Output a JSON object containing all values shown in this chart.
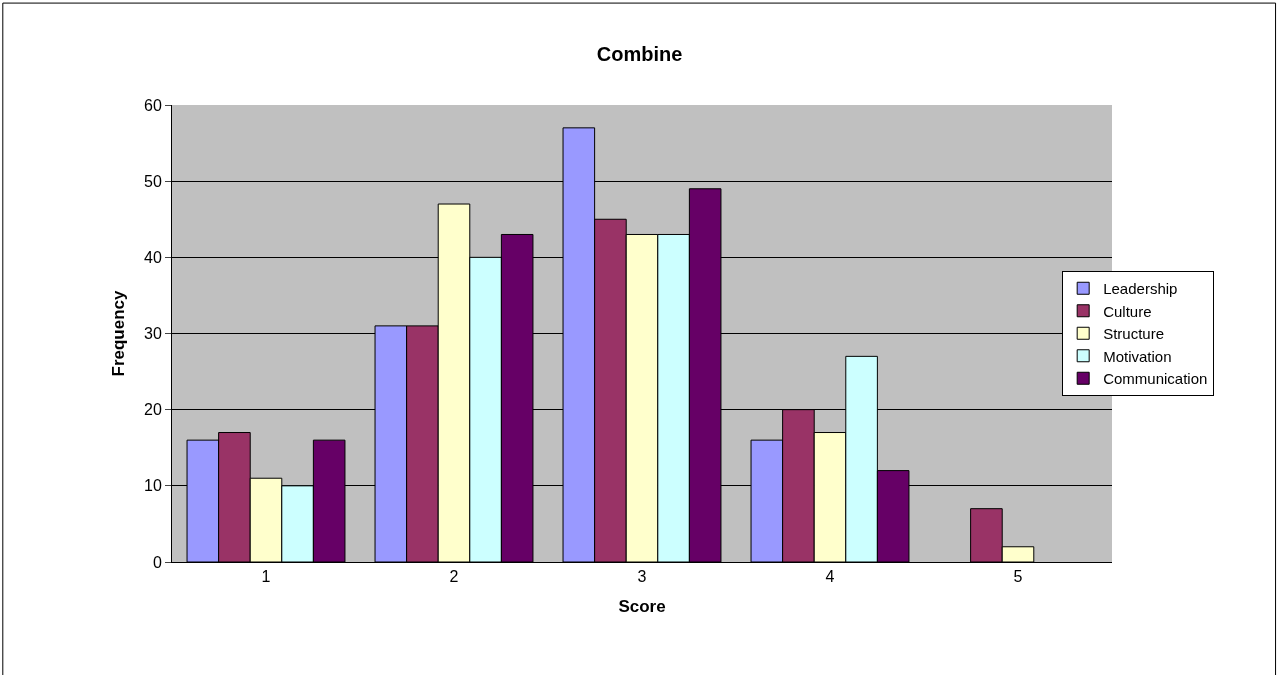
{
  "chart_data": {
    "type": "bar",
    "title": "Combine",
    "xlabel": "Score",
    "ylabel": "Frequency",
    "categories": [
      "1",
      "2",
      "3",
      "4",
      "5"
    ],
    "series": [
      {
        "name": "Leadership",
        "color": "#9999ff",
        "values": [
          16,
          31,
          57,
          16,
          null
        ]
      },
      {
        "name": "Culture",
        "color": "#993366",
        "values": [
          17,
          31,
          45,
          20,
          7
        ]
      },
      {
        "name": "Structure",
        "color": "#ffffcc",
        "values": [
          11,
          47,
          43,
          17,
          2
        ]
      },
      {
        "name": "Motivation",
        "color": "#ccffff",
        "values": [
          10,
          40,
          43,
          27,
          null
        ]
      },
      {
        "name": "Communication",
        "color": "#660066",
        "values": [
          16,
          43,
          49,
          12,
          null
        ]
      }
    ],
    "ylim": [
      0,
      60
    ],
    "yticks": [
      0,
      10,
      20,
      30,
      40,
      50,
      60
    ],
    "grid": "y",
    "legend": "right"
  }
}
